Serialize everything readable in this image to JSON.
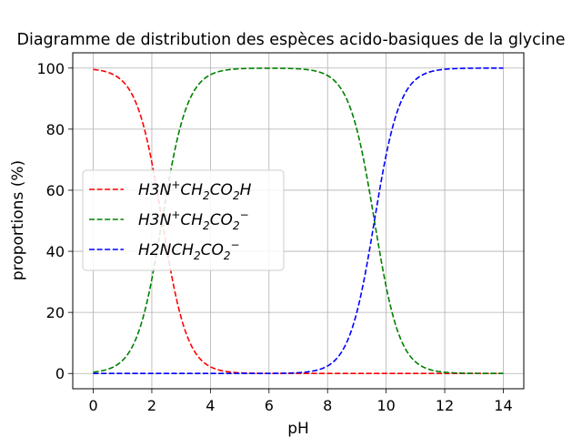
{
  "chart_data": {
    "type": "line",
    "title": "Diagramme de distribution des espèces acido-basiques de la glycine",
    "xlabel": "pH",
    "ylabel": "proportions (%)",
    "xlim": [
      -0.7,
      14.7
    ],
    "ylim": [
      -5,
      105
    ],
    "x_ticks": [
      0,
      2,
      4,
      6,
      8,
      10,
      12,
      14
    ],
    "y_ticks": [
      0,
      20,
      40,
      60,
      80,
      100
    ],
    "grid": true,
    "legend_position": "center-left",
    "pKa": [
      2.35,
      9.6
    ],
    "x": [
      0,
      0.5,
      1,
      1.5,
      2,
      2.35,
      2.5,
      3,
      3.5,
      4,
      5,
      6,
      7,
      8,
      8.5,
      9,
      9.6,
      10,
      10.5,
      11,
      12,
      13,
      14
    ],
    "series": [
      {
        "name": "H3N+CH2CO2H",
        "name_parts": {
          "base": "H3N",
          "sup": "+",
          "rest1": "CH",
          "sub1": "2",
          "rest2": "CO",
          "sub2": "2",
          "tail": "H",
          "sup2": ""
        },
        "color": "#ff0000",
        "style": "dashed",
        "values": [
          99.6,
          98.6,
          95.7,
          87.6,
          69.1,
          50.0,
          41.5,
          18.3,
          6.6,
          2.2,
          0.2,
          0.0,
          0.0,
          0.0,
          0.0,
          0.0,
          0.0,
          0.0,
          0.0,
          0.0,
          0.0,
          0.0,
          0.0
        ]
      },
      {
        "name": "H3N+CH2CO2−",
        "name_parts": {
          "base": "H3N",
          "sup": "+",
          "rest1": "CH",
          "sub1": "2",
          "rest2": "CO",
          "sub2": "2",
          "tail": "",
          "sup2": "−"
        },
        "color": "#008000",
        "style": "dashed",
        "values": [
          0.4,
          1.4,
          4.3,
          12.4,
          30.9,
          50.0,
          58.5,
          81.7,
          93.4,
          97.8,
          99.8,
          100.0,
          99.7,
          97.5,
          92.6,
          79.9,
          50.0,
          28.5,
          11.2,
          3.8,
          0.4,
          0.0,
          0.0
        ]
      },
      {
        "name": "H2NCH2CO2−",
        "name_parts": {
          "base": "H2NCH",
          "sup": "",
          "rest1": "",
          "sub1": "2",
          "rest2": "CO",
          "sub2": "2",
          "tail": "",
          "sup2": "−"
        },
        "color": "#0000ff",
        "style": "dashed",
        "values": [
          0.0,
          0.0,
          0.0,
          0.0,
          0.0,
          0.0,
          0.0,
          0.0,
          0.0,
          0.0,
          0.0,
          0.0,
          0.3,
          2.5,
          7.4,
          20.1,
          50.0,
          71.5,
          88.8,
          96.2,
          99.6,
          100.0,
          100.0
        ]
      }
    ]
  }
}
